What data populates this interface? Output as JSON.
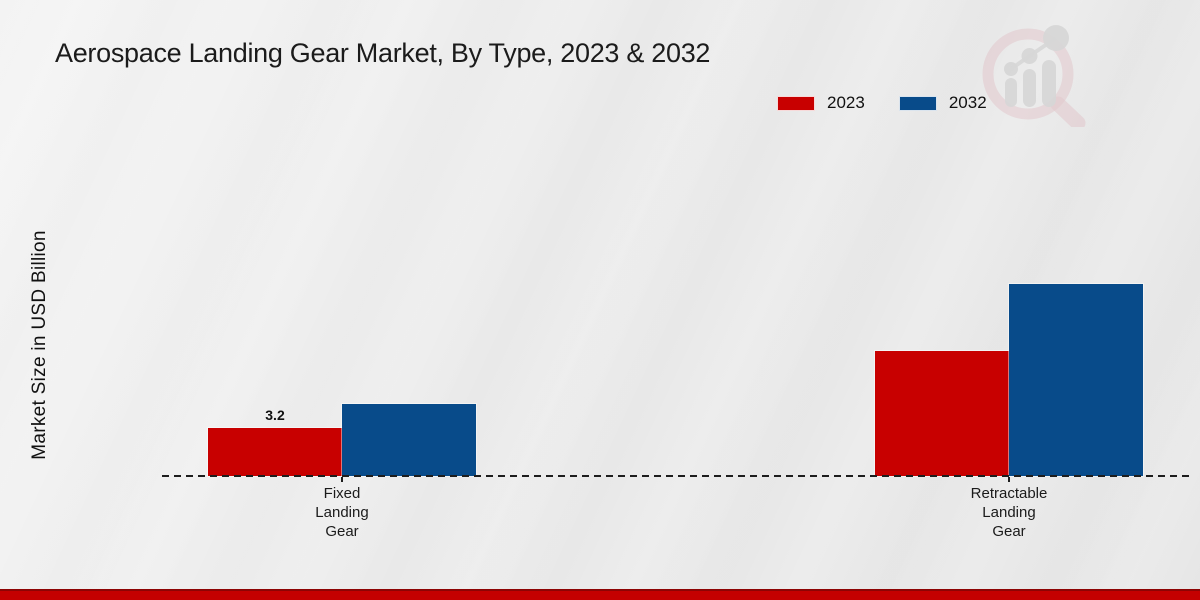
{
  "page": {
    "title": "Aerospace Landing Gear Market, By Type, 2023 & 2032"
  },
  "chart_data": {
    "type": "bar",
    "title": "Aerospace Landing Gear Market, By Type, 2023 & 2032",
    "ylabel": "Market Size in USD Billion",
    "xlabel": "",
    "categories": [
      "Fixed Landing Gear",
      "Retractable Landing Gear"
    ],
    "xtick_labels": [
      "Fixed\nLanding\nGear",
      "Retractable\nLanding\nGear"
    ],
    "series": [
      {
        "name": "2023",
        "color": "#c80000",
        "values": [
          3.2,
          8.3
        ]
      },
      {
        "name": "2032",
        "color": "#084b8a",
        "values": [
          4.8,
          12.8
        ]
      }
    ],
    "data_labels": [
      {
        "category_index": 0,
        "series_index": 0,
        "text": "3.2"
      }
    ],
    "legend_position": "top-right",
    "grid": false,
    "zero_line_style": "dashed",
    "ylim": [
      0,
      14
    ]
  },
  "watermark": {
    "icon": "mrfr-magnifier-bar-chart-logo",
    "ring_color": "#dcafb7",
    "bars_color": "#c6c6c6"
  },
  "footer": {
    "stripe_color": "#c40000"
  }
}
